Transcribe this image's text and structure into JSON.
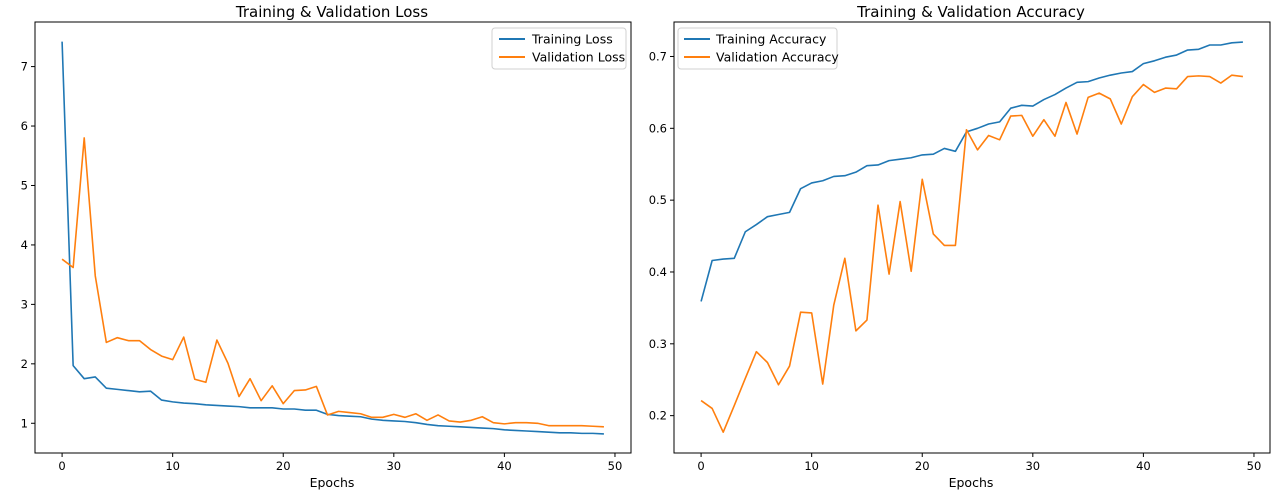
{
  "colors": {
    "training": "#1f77b4",
    "validation": "#ff7f0e"
  },
  "chart_data": [
    {
      "type": "line",
      "title": "Training & Validation Loss",
      "xlabel": "Epochs",
      "ylabel": "",
      "xlim": [
        -2.45,
        51.45
      ],
      "ylim": [
        0.5,
        7.75
      ],
      "xticks": [
        0,
        10,
        20,
        30,
        40,
        50
      ],
      "yticks": [
        1,
        2,
        3,
        4,
        5,
        6,
        7
      ],
      "grid": false,
      "legend_position": "top-right",
      "x": [
        0,
        1,
        2,
        3,
        4,
        5,
        6,
        7,
        8,
        9,
        10,
        11,
        12,
        13,
        14,
        15,
        16,
        17,
        18,
        19,
        20,
        21,
        22,
        23,
        24,
        25,
        26,
        27,
        28,
        29,
        30,
        31,
        32,
        33,
        34,
        35,
        36,
        37,
        38,
        39,
        40,
        41,
        42,
        43,
        44,
        45,
        46,
        47,
        48,
        49
      ],
      "series": [
        {
          "name": "Training Loss",
          "color_key": "training",
          "values": [
            7.42,
            1.97,
            1.75,
            1.78,
            1.59,
            1.57,
            1.55,
            1.53,
            1.54,
            1.39,
            1.36,
            1.34,
            1.33,
            1.31,
            1.3,
            1.29,
            1.28,
            1.26,
            1.26,
            1.26,
            1.24,
            1.24,
            1.22,
            1.22,
            1.15,
            1.13,
            1.12,
            1.11,
            1.07,
            1.05,
            1.04,
            1.03,
            1.01,
            0.98,
            0.96,
            0.95,
            0.94,
            0.93,
            0.92,
            0.91,
            0.89,
            0.88,
            0.87,
            0.86,
            0.85,
            0.84,
            0.84,
            0.83,
            0.83,
            0.82
          ]
        },
        {
          "name": "Validation Loss",
          "color_key": "validation",
          "values": [
            3.76,
            3.62,
            5.8,
            3.48,
            2.36,
            2.44,
            2.39,
            2.39,
            2.24,
            2.13,
            2.07,
            2.45,
            1.74,
            1.69,
            2.4,
            2.01,
            1.45,
            1.75,
            1.38,
            1.63,
            1.33,
            1.55,
            1.56,
            1.62,
            1.14,
            1.2,
            1.18,
            1.16,
            1.1,
            1.1,
            1.15,
            1.1,
            1.16,
            1.05,
            1.14,
            1.04,
            1.02,
            1.05,
            1.11,
            1.01,
            0.99,
            1.01,
            1.01,
            1.0,
            0.96,
            0.96,
            0.96,
            0.96,
            0.95,
            0.94
          ]
        }
      ]
    },
    {
      "type": "line",
      "title": "Training & Validation Accuracy",
      "xlabel": "Epochs",
      "ylabel": "",
      "xlim": [
        -2.45,
        51.45
      ],
      "ylim": [
        0.148,
        0.748
      ],
      "xticks": [
        0,
        10,
        20,
        30,
        40,
        50
      ],
      "yticks": [
        0.2,
        0.3,
        0.4,
        0.5,
        0.6,
        0.7
      ],
      "grid": false,
      "legend_position": "top-left",
      "x": [
        0,
        1,
        2,
        3,
        4,
        5,
        6,
        7,
        8,
        9,
        10,
        11,
        12,
        13,
        14,
        15,
        16,
        17,
        18,
        19,
        20,
        21,
        22,
        23,
        24,
        25,
        26,
        27,
        28,
        29,
        30,
        31,
        32,
        33,
        34,
        35,
        36,
        37,
        38,
        39,
        40,
        41,
        42,
        43,
        44,
        45,
        46,
        47,
        48,
        49
      ],
      "series": [
        {
          "name": "Training Accuracy",
          "color_key": "training",
          "values": [
            0.359,
            0.416,
            0.418,
            0.419,
            0.456,
            0.466,
            0.477,
            0.48,
            0.483,
            0.516,
            0.524,
            0.527,
            0.533,
            0.534,
            0.539,
            0.548,
            0.549,
            0.555,
            0.557,
            0.559,
            0.563,
            0.564,
            0.572,
            0.568,
            0.595,
            0.6,
            0.606,
            0.609,
            0.628,
            0.632,
            0.631,
            0.64,
            0.647,
            0.656,
            0.664,
            0.665,
            0.67,
            0.674,
            0.677,
            0.679,
            0.69,
            0.694,
            0.699,
            0.702,
            0.709,
            0.71,
            0.716,
            0.716,
            0.719,
            0.72
          ]
        },
        {
          "name": "Validation Accuracy",
          "color_key": "validation",
          "values": [
            0.221,
            0.21,
            0.177,
            0.214,
            0.252,
            0.289,
            0.274,
            0.243,
            0.269,
            0.344,
            0.343,
            0.244,
            0.354,
            0.419,
            0.318,
            0.333,
            0.493,
            0.397,
            0.498,
            0.401,
            0.529,
            0.453,
            0.437,
            0.437,
            0.598,
            0.57,
            0.59,
            0.584,
            0.617,
            0.618,
            0.589,
            0.612,
            0.589,
            0.636,
            0.592,
            0.643,
            0.649,
            0.641,
            0.606,
            0.644,
            0.661,
            0.65,
            0.656,
            0.655,
            0.672,
            0.673,
            0.672,
            0.663,
            0.674,
            0.672
          ]
        }
      ]
    }
  ]
}
